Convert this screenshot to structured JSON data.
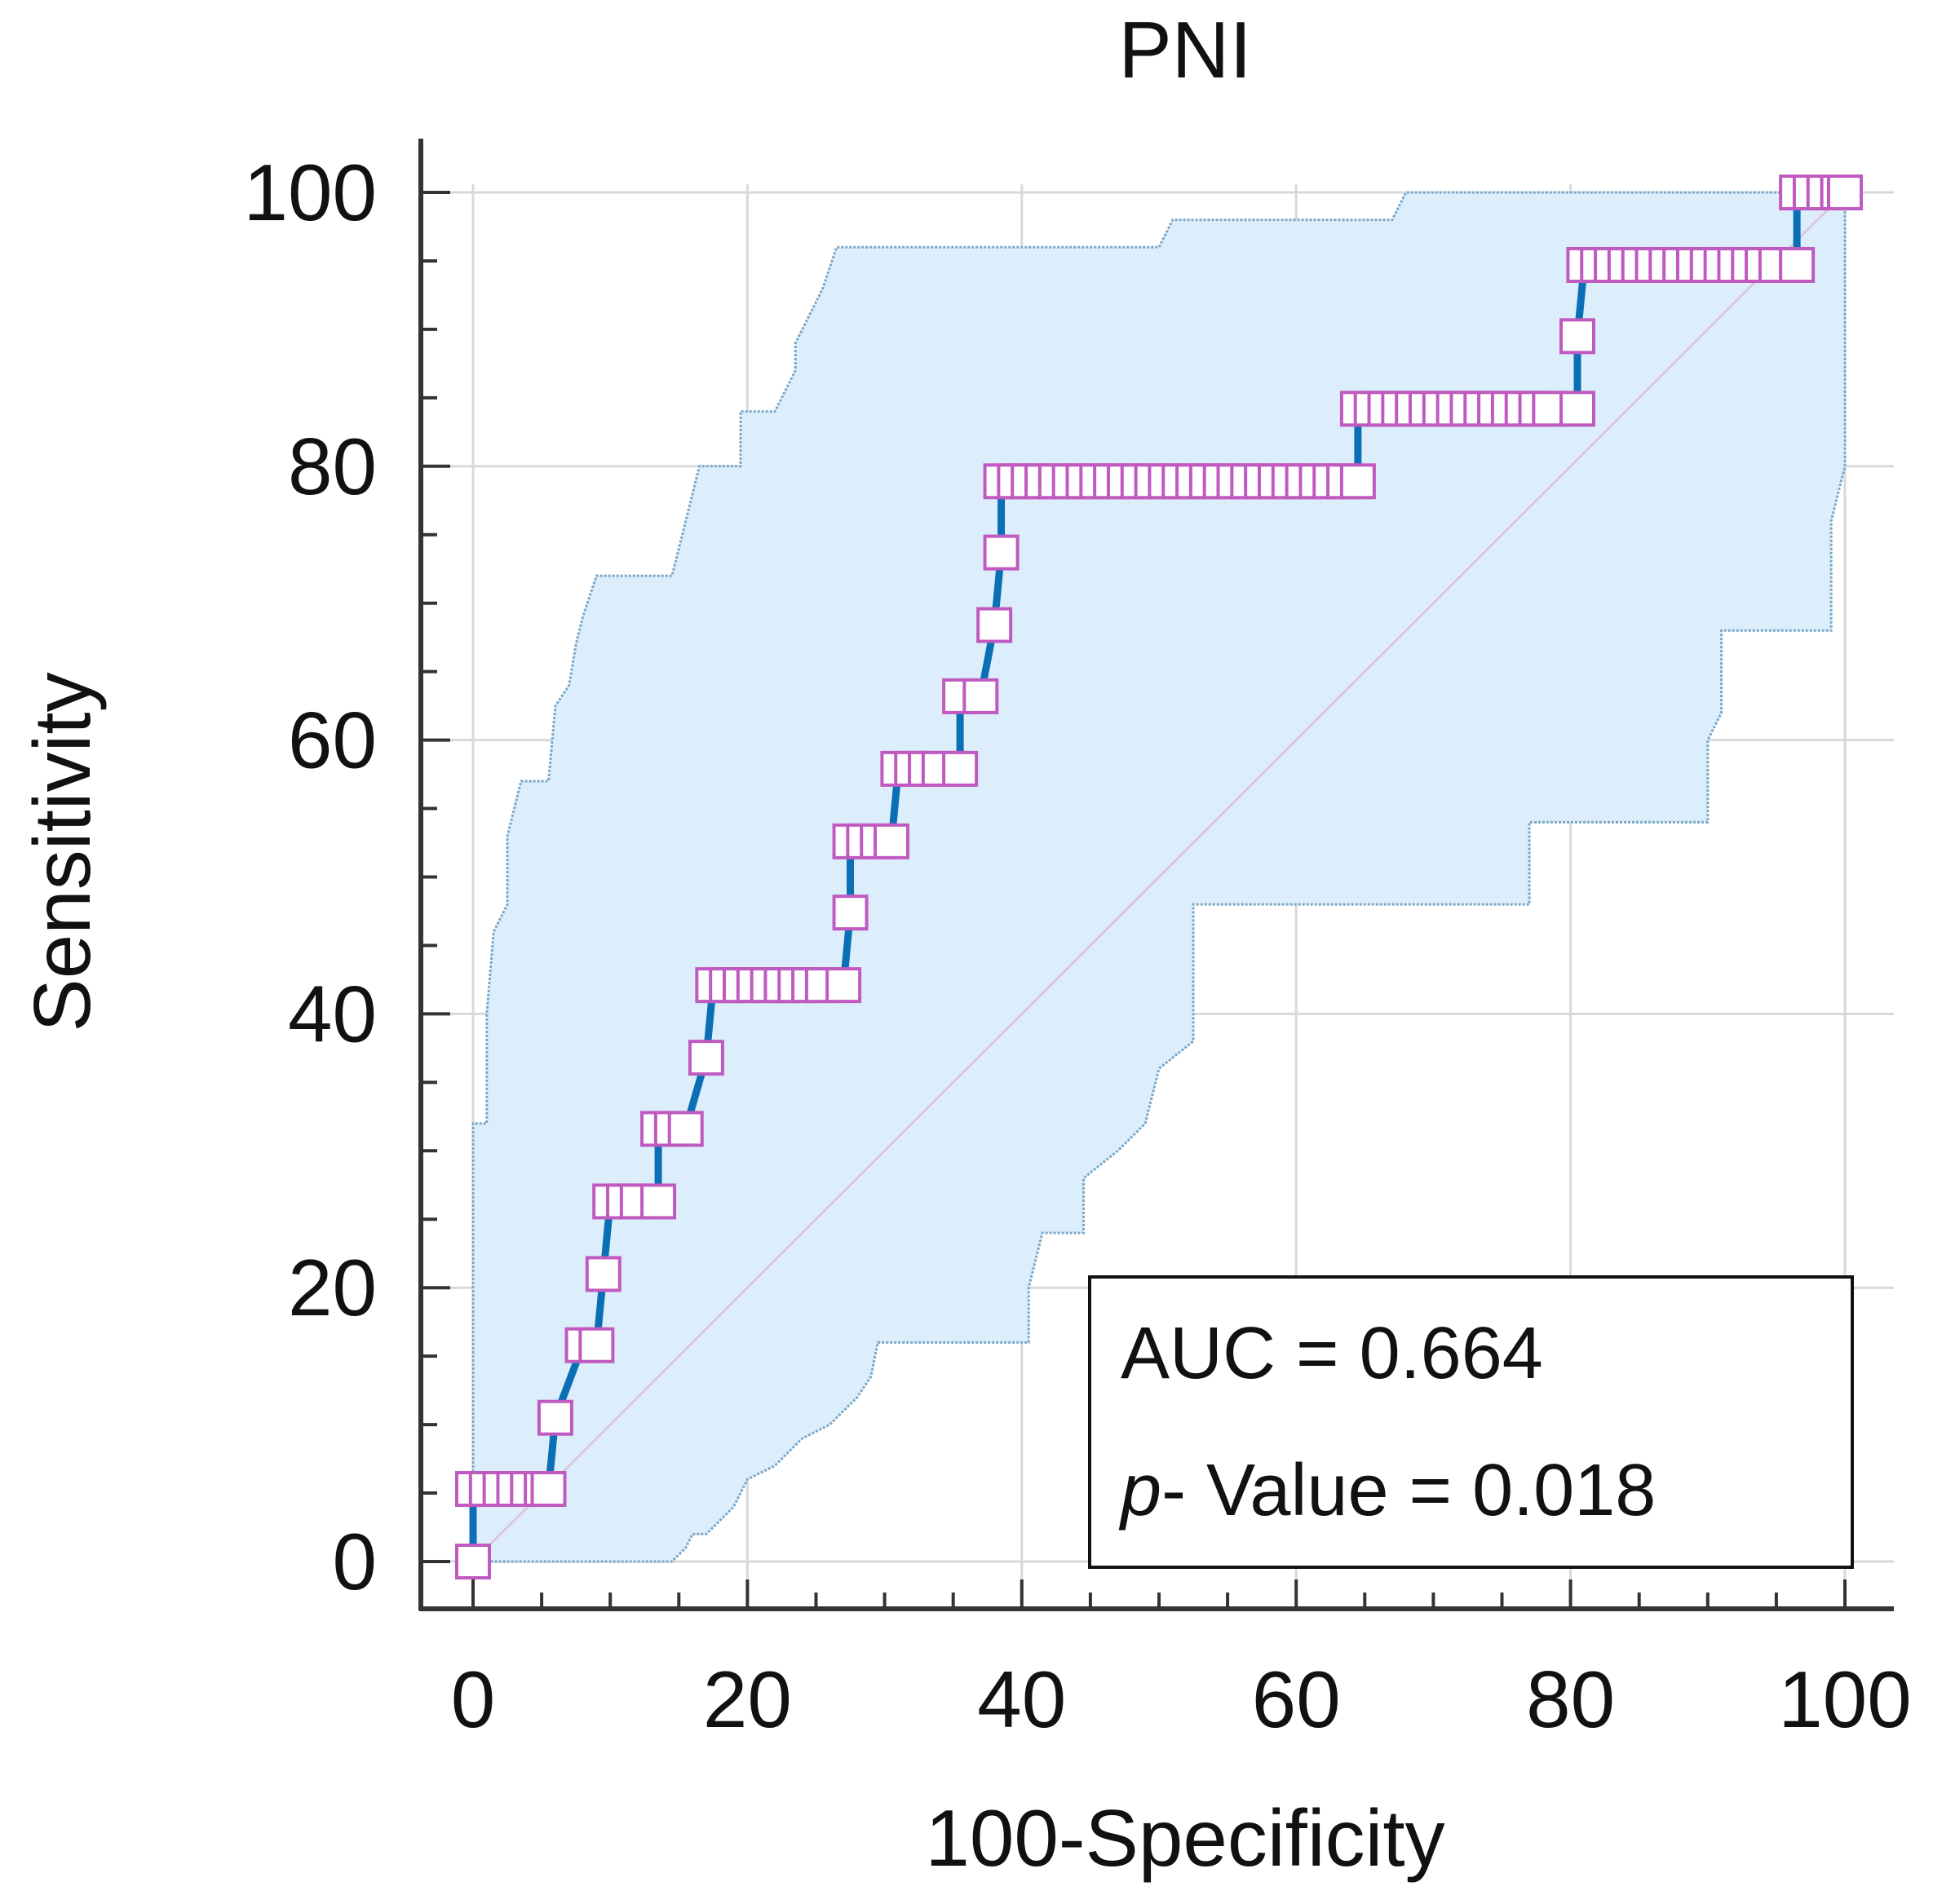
{
  "chart_data": {
    "type": "line",
    "title": "PNI",
    "xlabel": "100-Specificity",
    "ylabel": "Sensitivity",
    "xlim": [
      0,
      100
    ],
    "ylim": [
      0,
      100
    ],
    "x_ticks": [
      "0",
      "20",
      "40",
      "60",
      "80",
      "100"
    ],
    "y_ticks": [
      "0",
      "20",
      "40",
      "60",
      "80",
      "100"
    ],
    "grid": true,
    "annotation": {
      "auc_label": "AUC = 0.664",
      "p_label_italic": "p",
      "p_label_rest": "- Value = 0.018"
    },
    "colors": {
      "roc_line": "#0a6fb5",
      "marker_edge": "#c05ac0",
      "ci_fill": "#dceefc",
      "ci_edge": "#7aa7c8",
      "reference_line": "#d9c8dc",
      "grid": "#d9d9d9",
      "axis": "#333333"
    },
    "series": [
      {
        "name": "ROC curve",
        "points": [
          [
            0,
            0
          ],
          [
            0,
            5.3
          ],
          [
            1,
            5.3
          ],
          [
            2,
            5.3
          ],
          [
            3,
            5.3
          ],
          [
            4,
            5.3
          ],
          [
            5,
            5.3
          ],
          [
            5.5,
            5.3
          ],
          [
            6,
            10.5
          ],
          [
            8,
            15.8
          ],
          [
            9,
            15.8
          ],
          [
            9.5,
            21
          ],
          [
            10,
            26.3
          ],
          [
            11,
            26.3
          ],
          [
            12,
            26.3
          ],
          [
            13.5,
            26.3
          ],
          [
            13.5,
            31.6
          ],
          [
            14.5,
            31.6
          ],
          [
            15.5,
            31.6
          ],
          [
            17,
            36.8
          ],
          [
            17.5,
            42.1
          ],
          [
            18.5,
            42.1
          ],
          [
            19.5,
            42.1
          ],
          [
            20.5,
            42.1
          ],
          [
            21.5,
            42.1
          ],
          [
            22.5,
            42.1
          ],
          [
            23.5,
            42.1
          ],
          [
            24.5,
            42.1
          ],
          [
            25.5,
            42.1
          ],
          [
            27,
            42.1
          ],
          [
            27.5,
            47.4
          ],
          [
            27.5,
            52.6
          ],
          [
            28.5,
            52.6
          ],
          [
            29.5,
            52.6
          ],
          [
            30.5,
            52.6
          ],
          [
            31,
            57.9
          ],
          [
            32,
            57.9
          ],
          [
            33,
            57.9
          ],
          [
            34,
            57.9
          ],
          [
            35.5,
            57.9
          ],
          [
            35.5,
            63.2
          ],
          [
            37,
            63.2
          ],
          [
            38,
            68.4
          ],
          [
            38.5,
            73.7
          ],
          [
            38.5,
            78.9
          ],
          [
            39.5,
            78.9
          ],
          [
            40.5,
            78.9
          ],
          [
            41.5,
            78.9
          ],
          [
            42.5,
            78.9
          ],
          [
            43.5,
            78.9
          ],
          [
            44.5,
            78.9
          ],
          [
            45.5,
            78.9
          ],
          [
            46.5,
            78.9
          ],
          [
            47.5,
            78.9
          ],
          [
            48.5,
            78.9
          ],
          [
            49.5,
            78.9
          ],
          [
            50.5,
            78.9
          ],
          [
            51.5,
            78.9
          ],
          [
            52.5,
            78.9
          ],
          [
            53.5,
            78.9
          ],
          [
            54.5,
            78.9
          ],
          [
            55.5,
            78.9
          ],
          [
            56.5,
            78.9
          ],
          [
            57.5,
            78.9
          ],
          [
            58.5,
            78.9
          ],
          [
            59.5,
            78.9
          ],
          [
            60.5,
            78.9
          ],
          [
            61.5,
            78.9
          ],
          [
            62.5,
            78.9
          ],
          [
            63.5,
            78.9
          ],
          [
            64.5,
            78.9
          ],
          [
            64.5,
            84.2
          ],
          [
            65.5,
            84.2
          ],
          [
            66.5,
            84.2
          ],
          [
            67.5,
            84.2
          ],
          [
            68.5,
            84.2
          ],
          [
            69.5,
            84.2
          ],
          [
            70.5,
            84.2
          ],
          [
            71.5,
            84.2
          ],
          [
            72.5,
            84.2
          ],
          [
            73.5,
            84.2
          ],
          [
            74.5,
            84.2
          ],
          [
            75.5,
            84.2
          ],
          [
            76.5,
            84.2
          ],
          [
            77.5,
            84.2
          ],
          [
            78.5,
            84.2
          ],
          [
            80.5,
            84.2
          ],
          [
            80.5,
            89.5
          ],
          [
            81,
            94.7
          ],
          [
            82,
            94.7
          ],
          [
            83,
            94.7
          ],
          [
            84,
            94.7
          ],
          [
            85,
            94.7
          ],
          [
            86,
            94.7
          ],
          [
            87,
            94.7
          ],
          [
            88,
            94.7
          ],
          [
            89,
            94.7
          ],
          [
            90,
            94.7
          ],
          [
            91,
            94.7
          ],
          [
            92,
            94.7
          ],
          [
            93,
            94.7
          ],
          [
            94,
            94.7
          ],
          [
            95,
            94.7
          ],
          [
            96.5,
            94.7
          ],
          [
            96.5,
            100
          ],
          [
            97.5,
            100
          ],
          [
            98.5,
            100
          ],
          [
            99.5,
            100
          ],
          [
            100,
            100
          ]
        ]
      },
      {
        "name": "Reference line",
        "points": [
          [
            0,
            0
          ],
          [
            100,
            100
          ]
        ]
      }
    ],
    "confidence_band": {
      "upper": [
        [
          0,
          0
        ],
        [
          0,
          32
        ],
        [
          1,
          32
        ],
        [
          1,
          40
        ],
        [
          1.5,
          46
        ],
        [
          2.5,
          48
        ],
        [
          2.5,
          53
        ],
        [
          3.5,
          57
        ],
        [
          5.5,
          57
        ],
        [
          6,
          62.5
        ],
        [
          7,
          64
        ],
        [
          7.5,
          67
        ],
        [
          8,
          69
        ],
        [
          9,
          72
        ],
        [
          14.5,
          72
        ],
        [
          16.5,
          80
        ],
        [
          19.5,
          80
        ],
        [
          19.5,
          84
        ],
        [
          22,
          84
        ],
        [
          23.5,
          87
        ],
        [
          23.5,
          89
        ],
        [
          24.5,
          91
        ],
        [
          25.5,
          93
        ],
        [
          26.5,
          96
        ],
        [
          50,
          96
        ],
        [
          51,
          98
        ],
        [
          67,
          98
        ],
        [
          68,
          100
        ],
        [
          100,
          100
        ]
      ],
      "lower": [
        [
          0,
          0
        ],
        [
          14.5,
          0
        ],
        [
          15.5,
          1
        ],
        [
          16,
          2
        ],
        [
          17,
          2
        ],
        [
          18,
          3
        ],
        [
          19,
          4
        ],
        [
          20,
          6
        ],
        [
          22,
          7
        ],
        [
          24,
          9
        ],
        [
          26,
          10
        ],
        [
          28,
          12
        ],
        [
          29,
          13.5
        ],
        [
          29.5,
          16
        ],
        [
          40.5,
          16
        ],
        [
          40.5,
          20
        ],
        [
          41.5,
          24
        ],
        [
          44.5,
          24
        ],
        [
          44.5,
          28
        ],
        [
          47,
          30
        ],
        [
          49,
          32
        ],
        [
          50,
          36
        ],
        [
          52.5,
          38
        ],
        [
          52.5,
          48
        ],
        [
          77,
          48
        ],
        [
          77,
          54
        ],
        [
          90,
          54
        ],
        [
          90,
          60
        ],
        [
          91,
          62
        ],
        [
          91,
          68
        ],
        [
          99,
          68
        ],
        [
          99,
          76
        ],
        [
          100,
          80
        ],
        [
          100,
          100
        ]
      ]
    }
  }
}
